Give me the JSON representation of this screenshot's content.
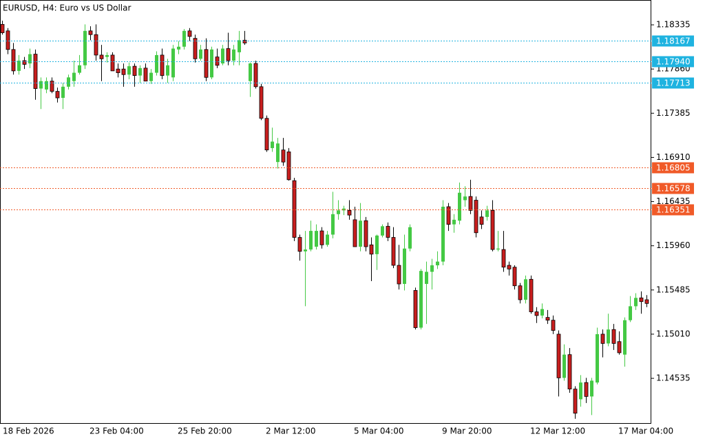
{
  "chart_data": {
    "type": "candlestick",
    "title": "EURUSD, H4:  Euro vs US Dollar",
    "up_color": "#44c944",
    "down_color": "#c81e1e",
    "ylim": [
      1.14054,
      1.18602
    ],
    "yticks": [
      1.18335,
      {
        "value": 1.1786,
        "label": "1.17860"
      },
      1.17385,
      {
        "value": 1.1691,
        "label": "1.16910"
      },
      1.16435,
      {
        "value": 1.1596,
        "label": "1.15960"
      },
      1.15485,
      {
        "value": 1.1501,
        "label": "1.15010"
      },
      1.14535
    ],
    "levels": [
      {
        "value": 1.18167,
        "color": "#1fb3e0"
      },
      {
        "value": 1.1794,
        "label": "1.17940",
        "color": "#1fb3e0"
      },
      {
        "value": 1.17713,
        "color": "#1fb3e0"
      },
      {
        "value": 1.16805,
        "color": "#f05a28"
      },
      {
        "value": 1.16578,
        "color": "#f05a28"
      },
      {
        "value": 1.16351,
        "color": "#f05a28"
      }
    ],
    "categories": [
      "18 Feb 2026",
      null,
      null,
      null,
      null,
      null,
      null,
      null,
      null,
      null,
      null,
      null,
      null,
      null,
      null,
      null,
      "23 Feb 04:00",
      null,
      null,
      null,
      null,
      null,
      null,
      null,
      null,
      null,
      null,
      null,
      null,
      null,
      null,
      null,
      "25 Feb 20:00",
      null,
      null,
      null,
      null,
      null,
      null,
      null,
      null,
      null,
      null,
      null,
      null,
      null,
      null,
      null,
      "2 Mar 12:00",
      null,
      null,
      null,
      null,
      null,
      null,
      null,
      null,
      null,
      null,
      null,
      null,
      null,
      null,
      null,
      "5 Mar 04:00",
      null,
      null,
      null,
      null,
      null,
      null,
      null,
      null,
      null,
      null,
      null,
      null,
      null,
      null,
      null,
      "9 Mar 20:00",
      null,
      null,
      null,
      null,
      null,
      null,
      null,
      null,
      null,
      null,
      null,
      null,
      null,
      null,
      null,
      "12 Mar 12:00",
      null,
      null,
      null,
      null,
      null,
      null,
      null,
      null,
      null,
      null,
      null,
      null,
      null,
      null,
      null,
      "17 Mar 04:00",
      null,
      null,
      null,
      null,
      null
    ],
    "open": [
      1.1834,
      1.1827,
      1.1807,
      1.1784,
      1.1795,
      1.1792,
      1.1802,
      1.1765,
      1.1764,
      1.1773,
      1.1762,
      1.1755,
      1.1767,
      1.1773,
      1.1782,
      1.179,
      1.1827,
      1.1823,
      1.1801,
      1.1799,
      1.1801,
      1.1786,
      1.1786,
      1.178,
      1.1789,
      1.1779,
      1.1787,
      1.1773,
      1.1782,
      1.1801,
      1.1779,
      1.1777,
      1.1807,
      1.181,
      1.1827,
      1.1819,
      1.1797,
      1.1807,
      1.1777,
      1.1799,
      1.1792,
      1.1808,
      1.1795,
      1.1804,
      1.1817,
      1.1773,
      1.1792,
      1.1767,
      1.1733,
      1.1701,
      1.1686,
      1.1699,
      1.1697,
      1.1666,
      1.1605,
      1.159,
      1.1592,
      1.1595,
      1.1612,
      1.1597,
      1.1608,
      1.163,
      1.1634,
      1.1634,
      1.1624,
      1.1595,
      1.1623,
      1.1597,
      1.1587,
      1.1607,
      1.1617,
      1.1605,
      1.1575,
      1.1555,
      1.1593,
      1.1548,
      1.1508,
      1.1555,
      1.1568,
      1.1575,
      1.1579,
      1.1638,
      1.1619,
      1.1623,
      1.1645,
      1.1649,
      1.1645,
      1.1627,
      1.1627,
      1.1634,
      1.1592,
      1.1592,
      1.1575,
      1.1573,
      1.1553,
      1.1538,
      1.156,
      1.1525,
      1.1521,
      1.1519,
      1.1516,
      1.1501,
      1.1454,
      1.1479,
      1.1442,
      1.1431,
      1.1449,
      1.1434,
      1.1449,
      1.1501,
      1.1491,
      1.1506,
      1.1493,
      1.1479,
      1.1516,
      1.1531,
      1.154,
      1.1538
    ],
    "high": [
      1.1838,
      1.183,
      1.1814,
      1.1801,
      1.1799,
      1.1808,
      1.1807,
      1.1777,
      1.1777,
      1.1777,
      1.1766,
      1.1771,
      1.178,
      1.1795,
      1.1801,
      1.1834,
      1.1832,
      1.1834,
      1.1812,
      1.1804,
      1.1804,
      1.1792,
      1.1792,
      1.1793,
      1.1792,
      1.179,
      1.1792,
      1.1786,
      1.1805,
      1.1808,
      1.1797,
      1.1812,
      1.1816,
      1.1829,
      1.183,
      1.1823,
      1.1812,
      1.1819,
      1.181,
      1.1808,
      1.1812,
      1.1825,
      1.1812,
      1.1827,
      1.1827,
      1.1793,
      1.1795,
      1.177,
      1.1736,
      1.1723,
      1.1712,
      1.1712,
      1.1701,
      1.1669,
      1.1608,
      1.1612,
      1.1623,
      1.1619,
      1.1616,
      1.1612,
      1.1654,
      1.1645,
      1.1639,
      1.1645,
      1.1638,
      1.1642,
      1.1627,
      1.1605,
      1.1608,
      1.1619,
      1.1621,
      1.1616,
      1.1597,
      1.1608,
      1.1619,
      1.1551,
      1.1571,
      1.1579,
      1.1582,
      1.159,
      1.1645,
      1.1642,
      1.163,
      1.1664,
      1.166,
      1.1667,
      1.1649,
      1.1634,
      1.1639,
      1.1645,
      1.1612,
      1.1612,
      1.1579,
      1.1575,
      1.1556,
      1.1564,
      1.1564,
      1.153,
      1.1534,
      1.1527,
      1.1521,
      1.1505,
      1.149,
      1.1486,
      1.1445,
      1.1457,
      1.1454,
      1.1454,
      1.1508,
      1.1506,
      1.1523,
      1.1512,
      1.1504,
      1.1519,
      1.1542,
      1.1545,
      1.1547,
      1.1543
    ],
    "low": [
      1.1823,
      1.1802,
      1.178,
      1.178,
      1.1786,
      1.1787,
      1.1753,
      1.1743,
      1.176,
      1.176,
      1.175,
      1.1743,
      1.1764,
      1.1767,
      1.178,
      1.1786,
      1.1817,
      1.1795,
      1.1773,
      1.1793,
      1.1784,
      1.1777,
      1.1767,
      1.1775,
      1.1767,
      1.1771,
      1.1773,
      1.177,
      1.1779,
      1.1775,
      1.1771,
      1.1773,
      1.1802,
      1.1807,
      1.1816,
      1.1793,
      1.1795,
      1.1773,
      1.1775,
      1.1787,
      1.179,
      1.179,
      1.179,
      1.179,
      1.1812,
      1.1756,
      1.1765,
      1.1731,
      1.1697,
      1.1697,
      1.1679,
      1.1682,
      1.1666,
      1.1601,
      1.158,
      1.1531,
      1.159,
      1.1592,
      1.1593,
      1.1595,
      1.1604,
      1.1624,
      1.1629,
      1.1624,
      1.1595,
      1.159,
      1.159,
      1.1558,
      1.157,
      1.1605,
      1.1601,
      1.1572,
      1.1549,
      1.1548,
      1.159,
      1.1506,
      1.1506,
      1.1512,
      1.1549,
      1.1571,
      1.1575,
      1.1612,
      1.161,
      1.1619,
      1.1638,
      1.163,
      1.1605,
      1.1614,
      1.1623,
      1.159,
      1.159,
      1.1568,
      1.1564,
      1.1549,
      1.1534,
      1.1534,
      1.1523,
      1.1513,
      1.1518,
      1.1512,
      1.1501,
      1.1434,
      1.1451,
      1.1438,
      1.141,
      1.1423,
      1.1427,
      1.1414,
      1.1447,
      1.1476,
      1.1488,
      1.1484,
      1.1479,
      1.1466,
      1.1514,
      1.1527,
      1.1523,
      1.153
    ],
    "close": [
      1.1825,
      1.1807,
      1.1784,
      1.1795,
      1.1791,
      1.1802,
      1.1765,
      1.1773,
      1.1773,
      1.1762,
      1.1755,
      1.1767,
      1.1777,
      1.1782,
      1.179,
      1.1827,
      1.1823,
      1.1801,
      1.1797,
      1.1801,
      1.1784,
      1.1782,
      1.178,
      1.1789,
      1.1779,
      1.1787,
      1.1773,
      1.1782,
      1.1801,
      1.1779,
      1.179,
      1.1808,
      1.181,
      1.1827,
      1.1821,
      1.1797,
      1.1807,
      1.1777,
      1.1807,
      1.179,
      1.1808,
      1.1795,
      1.1807,
      1.1817,
      1.1814,
      1.1792,
      1.1767,
      1.1733,
      1.1699,
      1.1708,
      1.1706,
      1.1686,
      1.1667,
      1.1605,
      1.159,
      1.1592,
      1.1612,
      1.1612,
      1.1597,
      1.1608,
      1.163,
      1.1634,
      1.1636,
      1.1629,
      1.1595,
      1.1623,
      1.1595,
      1.1587,
      1.1607,
      1.1617,
      1.1605,
      1.1575,
      1.1555,
      1.1593,
      1.1616,
      1.1508,
      1.1569,
      1.1568,
      1.1575,
      1.1579,
      1.1638,
      1.1619,
      1.1624,
      1.1653,
      1.1649,
      1.1634,
      1.161,
      1.1619,
      1.1634,
      1.1592,
      1.1593,
      1.1573,
      1.1571,
      1.1553,
      1.1538,
      1.156,
      1.1525,
      1.1521,
      1.1528,
      1.1516,
      1.1505,
      1.1454,
      1.1479,
      1.1442,
      1.1416,
      1.1449,
      1.1434,
      1.1451,
      1.1501,
      1.1491,
      1.1506,
      1.1491,
      1.1481,
      1.1516,
      1.1531,
      1.154,
      1.1536,
      1.1534
    ]
  }
}
